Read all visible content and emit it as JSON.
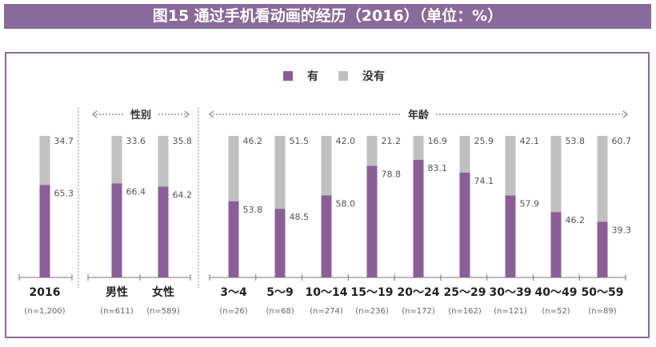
{
  "title": "图15 通过手机看动画的经历（2016）（单位：%）",
  "colors": {
    "yes": "#8a5f97",
    "no": "#c0c0c0",
    "frame": "#8a6a9a",
    "label": "#555555"
  },
  "chart_data": {
    "type": "bar",
    "stacked": true,
    "ylim": [
      0,
      100
    ],
    "legend": {
      "position": "top-center",
      "entries": [
        "有",
        "没有"
      ]
    },
    "series": [
      {
        "name": "有",
        "values": [
          65.3,
          66.4,
          64.2,
          53.8,
          48.5,
          58.0,
          78.8,
          83.1,
          74.1,
          57.9,
          46.2,
          39.3
        ]
      },
      {
        "name": "没有",
        "values": [
          34.7,
          33.6,
          35.8,
          46.2,
          51.5,
          42.0,
          21.2,
          16.9,
          25.9,
          42.1,
          53.8,
          60.7
        ]
      }
    ],
    "categories": [
      "2016",
      "男性",
      "女性",
      "3～4",
      "5～9",
      "10～14",
      "15～19",
      "20～24",
      "25～29",
      "30～39",
      "40～49",
      "50～59"
    ],
    "sample_sizes": [
      "(n=1,200)",
      "(n=611)",
      "(n=589)",
      "(n=26)",
      "(n=68)",
      "(n=274)",
      "(n=236)",
      "(n=172)",
      "(n=162)",
      "(n=121)",
      "(n=52)",
      "(n=89)"
    ],
    "groups": [
      {
        "label": "性别",
        "categories": [
          "男性",
          "女性"
        ]
      },
      {
        "label": "年龄",
        "categories": [
          "3～4",
          "5～9",
          "10～14",
          "15～19",
          "20～24",
          "25～29",
          "30～39",
          "40～49",
          "50～59"
        ]
      }
    ]
  }
}
